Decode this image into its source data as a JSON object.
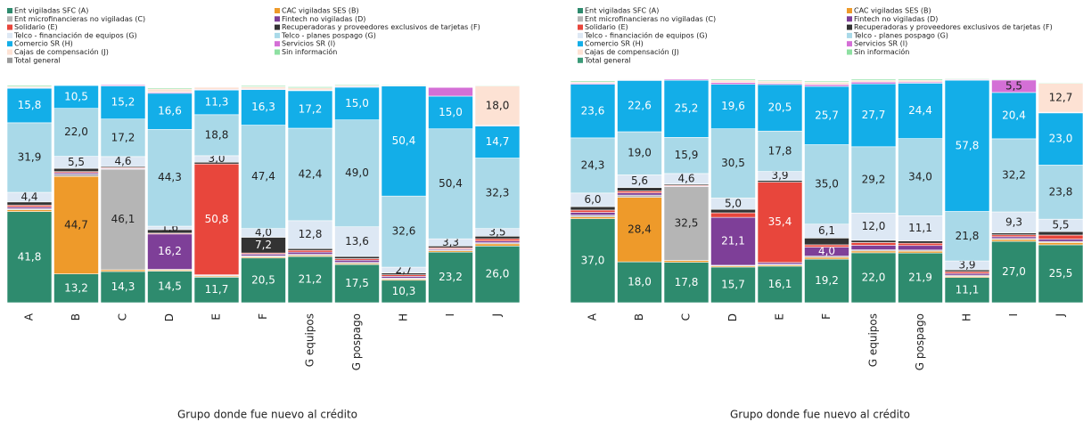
{
  "chart_data": [
    {
      "type": "bar",
      "stacked": true,
      "x_label": "Grupo donde fue nuevo al crédito",
      "ylim": [
        0,
        100
      ],
      "categories": [
        "A",
        "B",
        "C",
        "D",
        "E",
        "F",
        "G equipos",
        "G pospago",
        "H",
        "I",
        "J"
      ],
      "series": [
        {
          "name": "Ent vigiladas SFC (A)",
          "color": "#2e8b6e",
          "values": [
            41.8,
            13.2,
            14.3,
            14.5,
            11.7,
            20.5,
            21.2,
            17.5,
            10.3,
            23.2,
            26.0
          ],
          "value_labels": [
            "41,8",
            "13,2",
            "14,3",
            "14,5",
            "11,7",
            "20,5",
            "21,2",
            "17,5",
            "10,3",
            "23,2",
            "26,0"
          ]
        },
        {
          "name": "CAC vigiladas SES (B)",
          "color": "#ee9a2a",
          "values": [
            0.8,
            44.7,
            0.8,
            0.5,
            0.5,
            0.5,
            0.5,
            0.5,
            0.5,
            0.6,
            1.0
          ],
          "value_labels": [
            null,
            "44,7",
            null,
            null,
            null,
            null,
            null,
            null,
            null,
            null,
            null
          ]
        },
        {
          "name": "Ent microfinancieras no vigiladas (C)",
          "color": "#b5b5b5",
          "values": [
            0.5,
            1.0,
            46.1,
            0.3,
            0.3,
            0.5,
            0.5,
            0.5,
            0.5,
            0.4,
            0.5
          ],
          "value_labels": [
            null,
            null,
            "46,1",
            null,
            null,
            null,
            null,
            null,
            null,
            null,
            null
          ]
        },
        {
          "name": "Fintech no vigiladas (D)",
          "color": "#7e3f98",
          "values": [
            0.8,
            0.7,
            0.3,
            16.2,
            0.3,
            0.8,
            1.0,
            1.0,
            0.8,
            0.5,
            0.8
          ],
          "value_labels": [
            null,
            null,
            null,
            "16,2",
            null,
            null,
            null,
            null,
            null,
            null,
            null
          ]
        },
        {
          "name": "Solidario (E)",
          "color": "#e8463c",
          "values": [
            0.8,
            0.5,
            0.4,
            0.4,
            50.8,
            0.5,
            0.8,
            0.7,
            0.7,
            0.5,
            1.0
          ],
          "value_labels": [
            null,
            null,
            null,
            null,
            "50,8",
            null,
            null,
            null,
            null,
            null,
            null
          ]
        },
        {
          "name": "Recuperadoras y proveedores exclusivos de tarjetas (F)",
          "color": "#333333",
          "values": [
            1.5,
            1.5,
            0.5,
            1.6,
            0.8,
            7.2,
            0.8,
            1.0,
            0.8,
            0.8,
            1.2
          ],
          "value_labels": [
            null,
            null,
            null,
            null,
            null,
            "7,2",
            null,
            null,
            null,
            null,
            null
          ]
        },
        {
          "name": "Telco - financiación de equipos (G)",
          "color": "#dde8f4",
          "values": [
            4.4,
            5.5,
            4.6,
            1.6,
            3.0,
            4.0,
            12.8,
            13.6,
            2.7,
            3.3,
            3.5
          ],
          "value_labels": [
            "4,4",
            "5,5",
            "4,6",
            "1,6",
            "3,0",
            "4,0",
            "12,8",
            "13,6",
            "2,7",
            "3,3",
            "3,5"
          ]
        },
        {
          "name": "Telco - planes pospago (G)",
          "color": "#a9d9e8",
          "values": [
            31.9,
            22.0,
            17.2,
            44.3,
            18.8,
            47.4,
            42.4,
            49.0,
            32.6,
            50.4,
            32.3
          ],
          "value_labels": [
            "31,9",
            "22,0",
            "17,2",
            "44,3",
            "18,8",
            "47,4",
            "42,4",
            "49,0",
            "32,6",
            "50,4",
            "32,3"
          ]
        },
        {
          "name": "Comercio SR (H)",
          "color": "#13aee8",
          "values": [
            15.8,
            10.5,
            15.2,
            16.6,
            11.3,
            16.3,
            17.2,
            15.0,
            50.4,
            15.0,
            14.7
          ],
          "value_labels": [
            "15,8",
            "10,5",
            "15,2",
            "16,6",
            "11,3",
            "16,3",
            "17,2",
            "15,0",
            "50,4",
            "15,0",
            "14,7"
          ]
        },
        {
          "name": "Servicios SR (I)",
          "color": "#d46fd6",
          "values": [
            0.3,
            0.2,
            0.5,
            0.5,
            0.3,
            0.3,
            0.3,
            0.3,
            0.3,
            4.0,
            0.3
          ]
        },
        {
          "name": "Cajas de compensación (J)",
          "color": "#fde2d4",
          "values": [
            0.5,
            0.1,
            0.1,
            1.5,
            1.0,
            1.0,
            1.0,
            0.5,
            0.1,
            0.1,
            18.0
          ],
          "value_labels": [
            null,
            null,
            null,
            null,
            null,
            null,
            null,
            null,
            null,
            null,
            "18,0"
          ]
        },
        {
          "name": "Sin información",
          "color": "#8ee0a2",
          "values": [
            0.5,
            0.1,
            0.1,
            0.5,
            0.2,
            0.5,
            0.5,
            0.4,
            0.3,
            0.2,
            0.3
          ]
        },
        {
          "name": "Total general",
          "color": "#9a9a9a",
          "values": [
            0,
            0,
            0,
            0,
            0,
            0,
            0,
            0,
            0,
            0,
            0
          ]
        }
      ]
    },
    {
      "type": "bar",
      "stacked": true,
      "x_label": "Grupo donde fue nuevo al crédito",
      "ylim": [
        0,
        100
      ],
      "categories": [
        "A",
        "B",
        "C",
        "D",
        "E",
        "F",
        "G equipos",
        "G pospago",
        "H",
        "I",
        "J"
      ],
      "series": [
        {
          "name": "Ent vigiladas SFC (A)",
          "color": "#2e8b6e",
          "values": [
            37.0,
            18.0,
            17.8,
            15.7,
            16.1,
            19.2,
            22.0,
            21.9,
            11.1,
            27.0,
            25.5
          ],
          "value_labels": [
            "37,0",
            "18,0",
            "17,8",
            "15,7",
            "16,1",
            "19,2",
            "22,0",
            "21,9",
            "11,1",
            "27,0",
            "25,5"
          ]
        },
        {
          "name": "CAC vigiladas SES (B)",
          "color": "#ee9a2a",
          "values": [
            0.8,
            28.4,
            0.8,
            0.5,
            0.5,
            0.8,
            0.8,
            0.8,
            0.5,
            0.8,
            1.0
          ],
          "value_labels": [
            null,
            "28,4",
            null,
            null,
            null,
            null,
            null,
            null,
            null,
            null,
            null
          ]
        },
        {
          "name": "Ent microfinancieras no vigiladas (C)",
          "color": "#b5b5b5",
          "values": [
            0.8,
            1.0,
            32.5,
            0.3,
            0.3,
            0.5,
            0.5,
            0.5,
            0.5,
            0.5,
            0.5
          ],
          "value_labels": [
            null,
            null,
            "32,5",
            null,
            null,
            null,
            null,
            null,
            null,
            null,
            null
          ]
        },
        {
          "name": "Fintech no vigiladas (D)",
          "color": "#7e3f98",
          "values": [
            1.2,
            1.0,
            0.3,
            21.1,
            0.8,
            4.0,
            2.0,
            2.0,
            0.8,
            0.8,
            1.0
          ],
          "value_labels": [
            null,
            null,
            null,
            "21,1",
            null,
            "4,0",
            null,
            null,
            null,
            null,
            null
          ]
        },
        {
          "name": "Solidario (E)",
          "color": "#e8463c",
          "values": [
            1.0,
            0.8,
            0.4,
            2.0,
            35.4,
            1.0,
            1.2,
            1.0,
            0.8,
            0.8,
            1.8
          ],
          "value_labels": [
            null,
            null,
            null,
            null,
            "35,4",
            null,
            null,
            null,
            null,
            null,
            null
          ]
        },
        {
          "name": "Recuperadoras y proveedores exclusivos de tarjetas (F)",
          "color": "#333333",
          "values": [
            1.5,
            1.5,
            0.5,
            1.5,
            0.8,
            3.0,
            1.0,
            1.0,
            0.8,
            0.8,
            1.5
          ]
        },
        {
          "name": "Telco - financiación de equipos (G)",
          "color": "#dde8f4",
          "values": [
            6.0,
            5.6,
            4.6,
            5.0,
            3.9,
            6.1,
            12.0,
            11.1,
            3.9,
            9.3,
            5.5
          ],
          "value_labels": [
            "6,0",
            "5,6",
            "4,6",
            "5,0",
            "3,9",
            "6,1",
            "12,0",
            "11,1",
            "3,9",
            "9,3",
            "5,5"
          ]
        },
        {
          "name": "Telco - planes pospago (G)",
          "color": "#a9d9e8",
          "values": [
            24.3,
            19.0,
            15.9,
            30.5,
            17.8,
            35.0,
            29.2,
            34.0,
            21.8,
            32.2,
            23.8
          ],
          "value_labels": [
            "24,3",
            "19,0",
            "15,9",
            "30,5",
            "17,8",
            "35,0",
            "29,2",
            "34,0",
            "21,8",
            "32,2",
            "23,8"
          ]
        },
        {
          "name": "Comercio SR (H)",
          "color": "#13aee8",
          "values": [
            23.6,
            22.6,
            25.2,
            19.6,
            20.5,
            25.7,
            27.7,
            24.4,
            57.8,
            20.4,
            23.0
          ],
          "value_labels": [
            "23,6",
            "22,6",
            "25,2",
            "19,6",
            "20,5",
            "25,7",
            "27,7",
            "24,4",
            "57,8",
            "20,4",
            "23,0"
          ]
        },
        {
          "name": "Servicios SR (I)",
          "color": "#d46fd6",
          "values": [
            0.5,
            0.3,
            0.5,
            0.8,
            0.5,
            0.8,
            0.8,
            0.5,
            0.3,
            5.5,
            0.3
          ],
          "value_labels": [
            null,
            null,
            null,
            null,
            null,
            null,
            null,
            null,
            null,
            "5,5",
            null
          ]
        },
        {
          "name": "Cajas de compensación (J)",
          "color": "#fde2d4",
          "values": [
            0.5,
            0.1,
            0.1,
            1.0,
            1.0,
            1.0,
            0.8,
            0.8,
            0.1,
            0.1,
            12.7
          ],
          "value_labels": [
            null,
            null,
            null,
            null,
            null,
            null,
            null,
            null,
            null,
            null,
            "12,7"
          ]
        },
        {
          "name": "Sin información",
          "color": "#8ee0a2",
          "values": [
            0.5,
            0.2,
            0.2,
            0.5,
            0.4,
            0.5,
            0.5,
            0.5,
            0.3,
            0.3,
            0.3
          ]
        },
        {
          "name": "Total general",
          "color": "#3a9a78",
          "values": [
            0,
            0,
            0,
            0,
            0,
            0,
            0,
            0,
            0,
            0,
            0
          ]
        }
      ]
    }
  ]
}
